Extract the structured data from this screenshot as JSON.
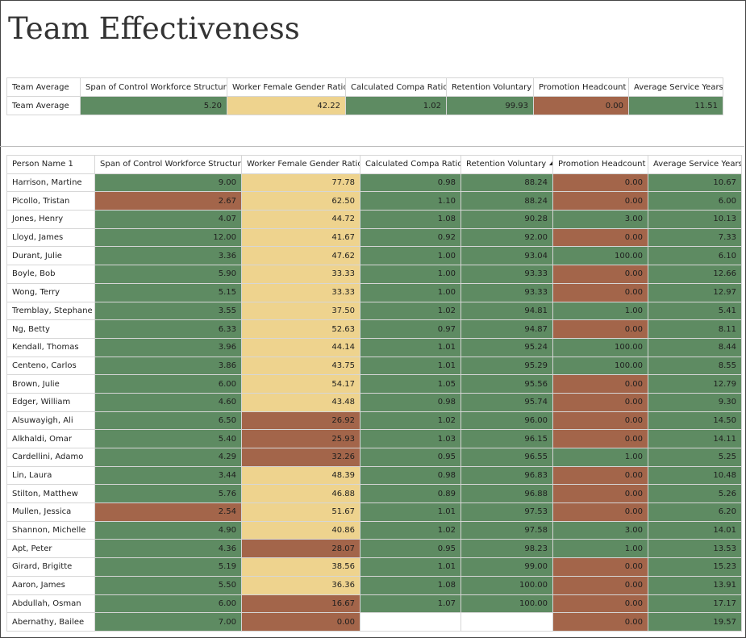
{
  "header": {
    "title": "Team Effectiveness"
  },
  "team_table": {
    "headers": [
      "Team Average",
      "Span of Control Workforce Structure",
      "Worker Female Gender Ratio",
      "Calculated Compa Ratio",
      "Retention Voluntary",
      "Promotion Headcount",
      "Average Service Years"
    ],
    "rows": [
      {
        "cells": [
          "Team Average",
          "5.20",
          "42.22",
          "1.02",
          "99.93",
          "0.00",
          "11.51"
        ],
        "fills": [
          null,
          "#5e8b62",
          "#eed38e",
          "#5e8b62",
          "#5e8b62",
          "#a3654a",
          "#5e8b62"
        ]
      }
    ]
  },
  "person_table": {
    "headers": [
      "Person Name 1",
      "Span of Control Workforce Structure",
      "Worker Female Gender Ratio",
      "Calculated Compa Ratio",
      "Retention Voluntary",
      "Promotion Headcount",
      "Average Service Years"
    ],
    "sort": {
      "column": 4,
      "direction": "ascending"
    },
    "rows": [
      {
        "cells": [
          "Harrison, Martine",
          "9.00",
          "77.78",
          "0.98",
          "88.24",
          "0.00",
          "10.67"
        ],
        "fills": [
          null,
          "#5e8b62",
          "#eed38e",
          "#5e8b62",
          "#5e8b62",
          "#a3654a",
          "#5e8b62"
        ]
      },
      {
        "cells": [
          "Picollo, Tristan",
          "2.67",
          "62.50",
          "1.10",
          "88.24",
          "0.00",
          "6.00"
        ],
        "fills": [
          null,
          "#a3654a",
          "#eed38e",
          "#5e8b62",
          "#5e8b62",
          "#a3654a",
          "#5e8b62"
        ]
      },
      {
        "cells": [
          "Jones, Henry",
          "4.07",
          "44.72",
          "1.08",
          "90.28",
          "3.00",
          "10.13"
        ],
        "fills": [
          null,
          "#5e8b62",
          "#eed38e",
          "#5e8b62",
          "#5e8b62",
          "#5e8b62",
          "#5e8b62"
        ]
      },
      {
        "cells": [
          "Lloyd, James",
          "12.00",
          "41.67",
          "0.92",
          "92.00",
          "0.00",
          "7.33"
        ],
        "fills": [
          null,
          "#5e8b62",
          "#eed38e",
          "#5e8b62",
          "#5e8b62",
          "#a3654a",
          "#5e8b62"
        ]
      },
      {
        "cells": [
          "Durant, Julie",
          "3.36",
          "47.62",
          "1.00",
          "93.04",
          "100.00",
          "6.10"
        ],
        "fills": [
          null,
          "#5e8b62",
          "#eed38e",
          "#5e8b62",
          "#5e8b62",
          "#5e8b62",
          "#5e8b62"
        ]
      },
      {
        "cells": [
          "Boyle, Bob",
          "5.90",
          "33.33",
          "1.00",
          "93.33",
          "0.00",
          "12.66"
        ],
        "fills": [
          null,
          "#5e8b62",
          "#eed38e",
          "#5e8b62",
          "#5e8b62",
          "#a3654a",
          "#5e8b62"
        ]
      },
      {
        "cells": [
          "Wong, Terry",
          "5.15",
          "33.33",
          "1.00",
          "93.33",
          "0.00",
          "12.97"
        ],
        "fills": [
          null,
          "#5e8b62",
          "#eed38e",
          "#5e8b62",
          "#5e8b62",
          "#a3654a",
          "#5e8b62"
        ]
      },
      {
        "cells": [
          "Tremblay, Stephane",
          "3.55",
          "37.50",
          "1.02",
          "94.81",
          "1.00",
          "5.41"
        ],
        "fills": [
          null,
          "#5e8b62",
          "#eed38e",
          "#5e8b62",
          "#5e8b62",
          "#5e8b62",
          "#5e8b62"
        ]
      },
      {
        "cells": [
          "Ng, Betty",
          "6.33",
          "52.63",
          "0.97",
          "94.87",
          "0.00",
          "8.11"
        ],
        "fills": [
          null,
          "#5e8b62",
          "#eed38e",
          "#5e8b62",
          "#5e8b62",
          "#a3654a",
          "#5e8b62"
        ]
      },
      {
        "cells": [
          "Kendall, Thomas",
          "3.96",
          "44.14",
          "1.01",
          "95.24",
          "100.00",
          "8.44"
        ],
        "fills": [
          null,
          "#5e8b62",
          "#eed38e",
          "#5e8b62",
          "#5e8b62",
          "#5e8b62",
          "#5e8b62"
        ]
      },
      {
        "cells": [
          "Centeno, Carlos",
          "3.86",
          "43.75",
          "1.01",
          "95.29",
          "100.00",
          "8.55"
        ],
        "fills": [
          null,
          "#5e8b62",
          "#eed38e",
          "#5e8b62",
          "#5e8b62",
          "#5e8b62",
          "#5e8b62"
        ]
      },
      {
        "cells": [
          "Brown, Julie",
          "6.00",
          "54.17",
          "1.05",
          "95.56",
          "0.00",
          "12.79"
        ],
        "fills": [
          null,
          "#5e8b62",
          "#eed38e",
          "#5e8b62",
          "#5e8b62",
          "#a3654a",
          "#5e8b62"
        ]
      },
      {
        "cells": [
          "Edger, William",
          "4.60",
          "43.48",
          "0.98",
          "95.74",
          "0.00",
          "9.30"
        ],
        "fills": [
          null,
          "#5e8b62",
          "#eed38e",
          "#5e8b62",
          "#5e8b62",
          "#a3654a",
          "#5e8b62"
        ]
      },
      {
        "cells": [
          "Alsuwayigh, Ali",
          "6.50",
          "26.92",
          "1.02",
          "96.00",
          "0.00",
          "14.50"
        ],
        "fills": [
          null,
          "#5e8b62",
          "#a3654a",
          "#5e8b62",
          "#5e8b62",
          "#a3654a",
          "#5e8b62"
        ]
      },
      {
        "cells": [
          "Alkhaldi, Omar",
          "5.40",
          "25.93",
          "1.03",
          "96.15",
          "0.00",
          "14.11"
        ],
        "fills": [
          null,
          "#5e8b62",
          "#a3654a",
          "#5e8b62",
          "#5e8b62",
          "#a3654a",
          "#5e8b62"
        ]
      },
      {
        "cells": [
          "Cardellini, Adamo",
          "4.29",
          "32.26",
          "0.95",
          "96.55",
          "1.00",
          "5.25"
        ],
        "fills": [
          null,
          "#5e8b62",
          "#a3654a",
          "#5e8b62",
          "#5e8b62",
          "#5e8b62",
          "#5e8b62"
        ]
      },
      {
        "cells": [
          "Lin, Laura",
          "3.44",
          "48.39",
          "0.98",
          "96.83",
          "0.00",
          "10.48"
        ],
        "fills": [
          null,
          "#5e8b62",
          "#eed38e",
          "#5e8b62",
          "#5e8b62",
          "#a3654a",
          "#5e8b62"
        ]
      },
      {
        "cells": [
          "Stilton, Matthew",
          "5.76",
          "46.88",
          "0.89",
          "96.88",
          "0.00",
          "5.26"
        ],
        "fills": [
          null,
          "#5e8b62",
          "#eed38e",
          "#5e8b62",
          "#5e8b62",
          "#a3654a",
          "#5e8b62"
        ]
      },
      {
        "cells": [
          "Mullen, Jessica",
          "2.54",
          "51.67",
          "1.01",
          "97.53",
          "0.00",
          "6.20"
        ],
        "fills": [
          null,
          "#a3654a",
          "#eed38e",
          "#5e8b62",
          "#5e8b62",
          "#a3654a",
          "#5e8b62"
        ]
      },
      {
        "cells": [
          "Shannon, Michelle",
          "4.90",
          "40.86",
          "1.02",
          "97.58",
          "3.00",
          "14.01"
        ],
        "fills": [
          null,
          "#5e8b62",
          "#eed38e",
          "#5e8b62",
          "#5e8b62",
          "#5e8b62",
          "#5e8b62"
        ]
      },
      {
        "cells": [
          "Apt, Peter",
          "4.36",
          "28.07",
          "0.95",
          "98.23",
          "1.00",
          "13.53"
        ],
        "fills": [
          null,
          "#5e8b62",
          "#a3654a",
          "#5e8b62",
          "#5e8b62",
          "#5e8b62",
          "#5e8b62"
        ]
      },
      {
        "cells": [
          "Girard, Brigitte",
          "5.19",
          "38.56",
          "1.01",
          "99.00",
          "0.00",
          "15.23"
        ],
        "fills": [
          null,
          "#5e8b62",
          "#eed38e",
          "#5e8b62",
          "#5e8b62",
          "#a3654a",
          "#5e8b62"
        ]
      },
      {
        "cells": [
          "Aaron, James",
          "5.50",
          "36.36",
          "1.08",
          "100.00",
          "0.00",
          "13.91"
        ],
        "fills": [
          null,
          "#5e8b62",
          "#eed38e",
          "#5e8b62",
          "#5e8b62",
          "#a3654a",
          "#5e8b62"
        ]
      },
      {
        "cells": [
          "Abdullah, Osman",
          "6.00",
          "16.67",
          "1.07",
          "100.00",
          "0.00",
          "17.17"
        ],
        "fills": [
          null,
          "#5e8b62",
          "#a3654a",
          "#5e8b62",
          "#5e8b62",
          "#a3654a",
          "#5e8b62"
        ]
      },
      {
        "cells": [
          "Abernathy, Bailee",
          "7.00",
          "0.00",
          null,
          null,
          "0.00",
          "19.57"
        ],
        "fills": [
          null,
          "#5e8b62",
          "#a3654a",
          null,
          null,
          "#a3654a",
          "#5e8b62"
        ]
      }
    ]
  }
}
